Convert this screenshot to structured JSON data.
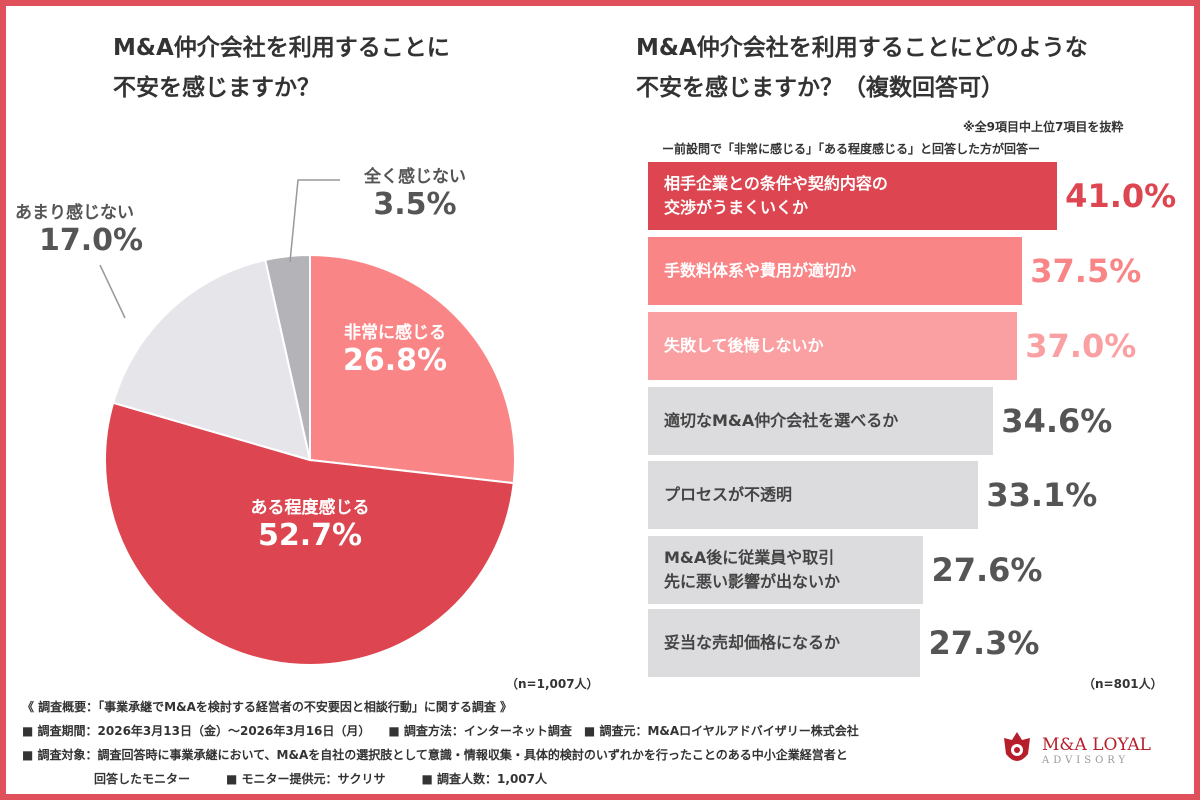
{
  "chart_data": [
    {
      "type": "pie",
      "title": "M&A仲介会社を利用することに不安を感じますか？",
      "title_lines": [
        "M&A仲介会社を利用することに",
        "不安を感じますか？"
      ],
      "start": "top",
      "direction": "clockwise",
      "slices": [
        {
          "label": "非常に感じる",
          "value": 26.8,
          "display": "26.8%",
          "color": "#f98587",
          "text_color": "#ffffff"
        },
        {
          "label": "ある程度感じる",
          "value": 52.7,
          "display": "52.7%",
          "color": "#dd4650",
          "text_color": "#ffffff"
        },
        {
          "label": "あまり感じない",
          "value": 17.0,
          "display": "17.0%",
          "color": "#e6e6ea",
          "text_color": "#555555"
        },
        {
          "label": "全く感じない",
          "value": 3.5,
          "display": "3.5%",
          "color": "#b4b4b8",
          "text_color": "#555555"
        }
      ],
      "sample": "（n=1,007人）"
    },
    {
      "type": "bar",
      "orientation": "horizontal",
      "title": "M&A仲介会社を利用することにどのような不安を感じますか？（複数回答可）",
      "title_lines": [
        "M&A仲介会社を利用することにどのような",
        "不安を感じますか？（複数回答可）"
      ],
      "note": "※全9項目中上位7項目を抜粋",
      "subtitle": "ー前設問で「非常に感じる」「ある程度感じる」と回答した方が回答ー",
      "unit": "%",
      "categories": [
        [
          "相手企業との条件や契約内容の",
          "交渉がうまくいくか"
        ],
        [
          "手数料体系や費用が適切か"
        ],
        [
          "失敗して後悔しないか"
        ],
        [
          "適切なM&A仲介会社を選べるか"
        ],
        [
          "プロセスが不透明"
        ],
        [
          "M&A後に従業員や取引",
          "先に悪い影響が出ないか"
        ],
        [
          "妥当な売却価格になるか"
        ]
      ],
      "values": [
        41.0,
        37.5,
        37.0,
        34.6,
        33.1,
        27.6,
        27.3
      ],
      "display": [
        "41.0%",
        "37.5%",
        "37.0%",
        "34.6%",
        "33.1%",
        "27.6%",
        "27.3%"
      ],
      "bar_colors": [
        "#dd4650",
        "#f98587",
        "#fba0a2",
        "#dcdcdf",
        "#dcdcdf",
        "#dcdcdf",
        "#dcdcdf"
      ],
      "label_colors": [
        "#ffffff",
        "#ffffff",
        "#ffffff",
        "#444444",
        "#444444",
        "#444444",
        "#444444"
      ],
      "value_colors": [
        "#dd4650",
        "#f98587",
        "#fba0a2",
        "#555555",
        "#555555",
        "#555555",
        "#555555"
      ],
      "sample": "（n=801人）"
    }
  ],
  "footer": {
    "lines": [
      "《 調査概要：「事業承継でM&Aを検討する経営者の不安要因と相談行動」に関する調査 》",
      "■ 調査期間：2026年3月13日（金）～2026年3月16日（月）　　■ 調査方法：インターネット調査　■ 調査元：M&Aロイヤルアドバイザリー株式会社",
      "■ 調査対象：調査回答時に事業承継において、M&Aを自社の選択肢として意識・情報収集・具体的検討のいずれかを行ったことのある中小企業経営者と",
      "　　　　　　回答したモニター　　　■ モニター提供元：サクリサ　　　■ 調査人数：1,007人"
    ]
  },
  "logo": {
    "line1": "M&A LOYAL",
    "line2": "ADVISORY"
  },
  "colors": {
    "border": "#e0505a",
    "accent": "#dd4650"
  }
}
